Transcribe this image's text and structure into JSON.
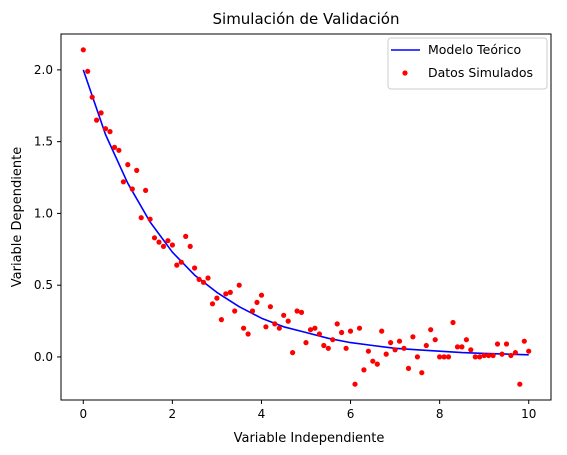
{
  "chart_data": {
    "type": "scatter",
    "title": "Simulación de Validación",
    "xlabel": "Variable Independiente",
    "ylabel": "Variable Dependiente",
    "xlim": [
      -0.5,
      10.5
    ],
    "ylim": [
      -0.3,
      2.25
    ],
    "xticks": [
      0,
      2,
      4,
      6,
      8,
      10
    ],
    "yticks": [
      0.0,
      0.5,
      1.0,
      1.5,
      2.0
    ],
    "xtick_labels": [
      "0",
      "2",
      "4",
      "6",
      "8",
      "10"
    ],
    "ytick_labels": [
      "0.0",
      "0.5",
      "1.0",
      "1.5",
      "2.0"
    ],
    "legend_position": "top-right",
    "series": [
      {
        "name": "Modelo Teórico",
        "kind": "line",
        "color": "#0000ff",
        "x": [
          0.0,
          0.5,
          1.0,
          1.5,
          2.0,
          2.5,
          3.0,
          3.5,
          4.0,
          4.5,
          5.0,
          5.5,
          6.0,
          6.5,
          7.0,
          7.5,
          8.0,
          8.5,
          9.0,
          9.5,
          10.0
        ],
        "y": [
          2.0,
          1.55,
          1.21,
          0.94,
          0.73,
          0.57,
          0.45,
          0.35,
          0.27,
          0.21,
          0.17,
          0.13,
          0.1,
          0.08,
          0.06,
          0.05,
          0.04,
          0.03,
          0.025,
          0.02,
          0.015
        ]
      },
      {
        "name": "Datos Simulados",
        "kind": "scatter",
        "color": "#ff0000",
        "x": [
          0.0,
          0.1,
          0.2,
          0.3,
          0.4,
          0.5,
          0.6,
          0.7,
          0.8,
          0.9,
          1.0,
          1.1,
          1.2,
          1.3,
          1.4,
          1.5,
          1.6,
          1.7,
          1.8,
          1.9,
          2.0,
          2.1,
          2.2,
          2.3,
          2.4,
          2.5,
          2.6,
          2.7,
          2.8,
          2.9,
          3.0,
          3.1,
          3.2,
          3.3,
          3.4,
          3.5,
          3.6,
          3.7,
          3.8,
          3.9,
          4.0,
          4.1,
          4.2,
          4.3,
          4.4,
          4.5,
          4.6,
          4.7,
          4.8,
          4.9,
          5.0,
          5.1,
          5.2,
          5.3,
          5.4,
          5.5,
          5.6,
          5.7,
          5.8,
          5.9,
          6.0,
          6.1,
          6.2,
          6.3,
          6.4,
          6.5,
          6.6,
          6.7,
          6.8,
          6.9,
          7.0,
          7.1,
          7.2,
          7.3,
          7.4,
          7.5,
          7.6,
          7.7,
          7.8,
          7.9,
          8.0,
          8.1,
          8.2,
          8.3,
          8.4,
          8.5,
          8.6,
          8.7,
          8.8,
          8.9,
          9.0,
          9.1,
          9.2,
          9.3,
          9.4,
          9.5,
          9.6,
          9.7,
          9.8,
          9.9,
          10.0
        ],
        "y": [
          2.14,
          1.99,
          1.81,
          1.65,
          1.7,
          1.59,
          1.57,
          1.46,
          1.44,
          1.22,
          1.34,
          1.17,
          1.3,
          0.97,
          1.16,
          0.96,
          0.83,
          0.8,
          0.77,
          0.81,
          0.78,
          0.64,
          0.66,
          0.84,
          0.77,
          0.62,
          0.54,
          0.52,
          0.55,
          0.37,
          0.41,
          0.26,
          0.44,
          0.45,
          0.32,
          0.5,
          0.2,
          0.16,
          0.32,
          0.38,
          0.43,
          0.21,
          0.35,
          0.23,
          0.2,
          0.29,
          0.25,
          0.03,
          0.32,
          0.31,
          0.1,
          0.19,
          0.2,
          0.16,
          0.08,
          0.06,
          0.12,
          0.23,
          0.17,
          0.06,
          0.18,
          -0.19,
          0.2,
          -0.09,
          0.04,
          -0.03,
          -0.05,
          0.18,
          0.02,
          0.1,
          0.05,
          0.11,
          0.06,
          -0.08,
          0.14,
          0.0,
          -0.11,
          0.08,
          0.19,
          0.12,
          0.0,
          0.0,
          0.0,
          0.24,
          0.07,
          0.07,
          0.12,
          0.05,
          0.0,
          0.0,
          0.01,
          0.01,
          0.01,
          0.09,
          0.02,
          0.09,
          0.01,
          0.03,
          -0.19,
          0.11,
          0.04
        ]
      }
    ]
  }
}
